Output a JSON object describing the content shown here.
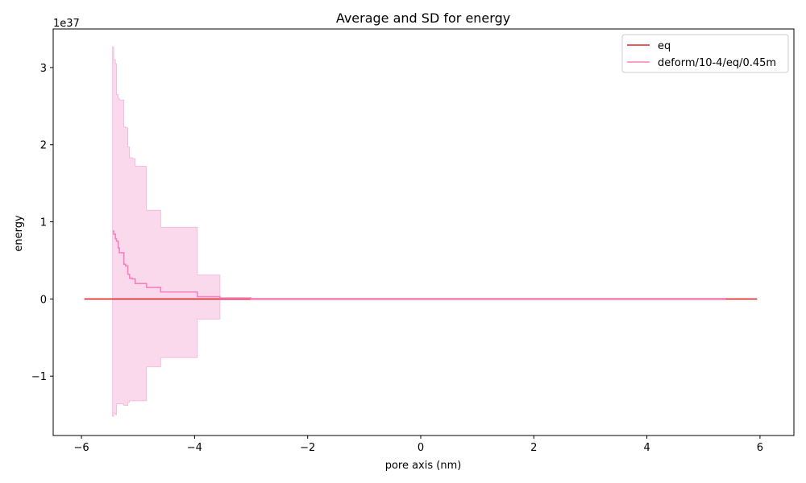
{
  "chart_data": {
    "type": "line",
    "title": "Average and SD for energy",
    "xlabel": "pore axis (nm)",
    "ylabel": "energy",
    "offset_label": "1e37",
    "scale": 1e+37,
    "xlim": [
      -6.5,
      6.6
    ],
    "ylim": [
      -1.77,
      3.5
    ],
    "xticks": [
      -6,
      -4,
      -2,
      0,
      2,
      4,
      6
    ],
    "xtick_labels": [
      "−6",
      "−4",
      "−2",
      "0",
      "2",
      "4",
      "6"
    ],
    "yticks": [
      -1,
      0,
      1,
      2,
      3
    ],
    "ytick_labels": [
      "−1",
      "0",
      "1",
      "2",
      "3"
    ],
    "grid": false,
    "legend_position": "top-right",
    "series": [
      {
        "name": "eq",
        "color": "#d62728",
        "x": [
          -5.95,
          5.95
        ],
        "y": [
          0,
          0
        ]
      },
      {
        "name": "deform/10-4/eq/0.45m",
        "color": "#f781bf",
        "band_color": "#f7b3d9",
        "x": [
          -5.45,
          -5.43,
          -5.4,
          -5.38,
          -5.35,
          -5.33,
          -5.3,
          -5.25,
          -5.22,
          -5.18,
          -5.15,
          -5.1,
          -5.05,
          -4.98,
          -4.85,
          -4.6,
          -4.3,
          -3.95,
          -3.55,
          -3.0,
          0.0,
          3.0,
          5.4
        ],
        "y": [
          0.88,
          0.84,
          0.78,
          0.75,
          0.66,
          0.6,
          0.6,
          0.45,
          0.43,
          0.32,
          0.27,
          0.26,
          0.2,
          0.2,
          0.15,
          0.09,
          0.09,
          0.03,
          0.01,
          0.0,
          0.0,
          0.0,
          0.0
        ],
        "upper": [
          3.27,
          3.1,
          3.05,
          2.65,
          2.6,
          2.58,
          2.58,
          2.23,
          2.22,
          1.97,
          1.83,
          1.82,
          1.72,
          1.72,
          1.15,
          0.93,
          0.93,
          0.31,
          0.02,
          0.01,
          0.01,
          0.01,
          0.01
        ],
        "lower": [
          -1.52,
          -1.48,
          -1.5,
          -1.36,
          -1.36,
          -1.36,
          -1.36,
          -1.38,
          -1.38,
          -1.34,
          -1.32,
          -1.32,
          -1.32,
          -1.32,
          -0.88,
          -0.76,
          -0.76,
          -0.26,
          -0.01,
          -0.01,
          -0.01,
          -0.01,
          -0.01
        ]
      }
    ]
  }
}
